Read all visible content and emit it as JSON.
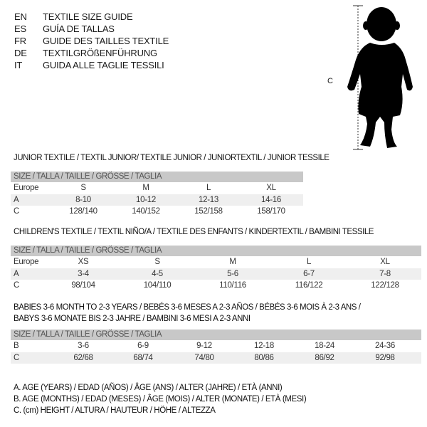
{
  "languages": [
    {
      "code": "EN",
      "text": "TEXTILE SIZE GUIDE"
    },
    {
      "code": "ES",
      "text": "GUÍA DE TALLAS"
    },
    {
      "code": "FR",
      "text": "GUIDE DES TAILLES TEXTILE"
    },
    {
      "code": "DE",
      "text": "TEXTILGRÖßENFÜHRUNG"
    },
    {
      "code": "IT",
      "text": "GUIDA ALLE TAGLIE TESSILI"
    }
  ],
  "figure": {
    "label": "C",
    "icon": "child-silhouette"
  },
  "size_header": "SIZE / TALLA / TAILLE / GRÖSSE / TAGLIA",
  "junior": {
    "title": "JUNIOR TEXTILE / TEXTIL JUNIOR/ TEXTILE JUNIOR / JUNIORTEXTIL / JUNIOR TESSILE",
    "rows": [
      {
        "label": "Europe",
        "cells": [
          "S",
          "M",
          "L",
          "XL"
        ]
      },
      {
        "label": "A",
        "cells": [
          "8-10",
          "10-12",
          "12-13",
          "14-16"
        ]
      },
      {
        "label": "C",
        "cells": [
          "128/140",
          "140/152",
          "152/158",
          "158/170"
        ]
      }
    ]
  },
  "children": {
    "title": "CHILDREN'S TEXTILE / TEXTIL NIÑO/A / TEXTILE DES ENFANTS / KINDERTEXTIL / BAMBINI TESSILE",
    "rows": [
      {
        "label": "Europe",
        "cells": [
          "XS",
          "S",
          "M",
          "L",
          "XL"
        ]
      },
      {
        "label": "A",
        "cells": [
          "3-4",
          "4-5",
          "5-6",
          "6-7",
          "7-8"
        ]
      },
      {
        "label": "C",
        "cells": [
          "98/104",
          "104/110",
          "110/116",
          "116/122",
          "122/128"
        ]
      }
    ]
  },
  "babies": {
    "title_line1": "BABIES 3-6 MONTH TO 2-3 YEARS / BEBÉS 3-6 MESES A 2-3 AÑOS / BÉBÉS 3-6 MOIS À 2-3 ANS /",
    "title_line2": "BABYS 3-6 MONATE BIS 2-3 JAHRE / BAMBINI 3-6 MESI A 2-3 ANNI",
    "rows": [
      {
        "label": "B",
        "cells": [
          "3-6",
          "6-9",
          "9-12",
          "12-18",
          "18-24",
          "24-36"
        ]
      },
      {
        "label": "C",
        "cells": [
          "62/68",
          "68/74",
          "74/80",
          "80/86",
          "86/92",
          "92/98"
        ]
      }
    ]
  },
  "legend": [
    "A. AGE (YEARS) / EDAD (AÑOS) / ÂGE (ANS) / ALTER (JAHRE) / ETÀ (ANNI)",
    "B. AGE (MONTHS) / EDAD (MESES) / ÂGE (MOIS) / ALTER (MONATE) / ETÀ (MESI)",
    "C. (cm) HEIGHT / ALTURA / HAUTEUR / HÖHE / ALTEZZA"
  ]
}
